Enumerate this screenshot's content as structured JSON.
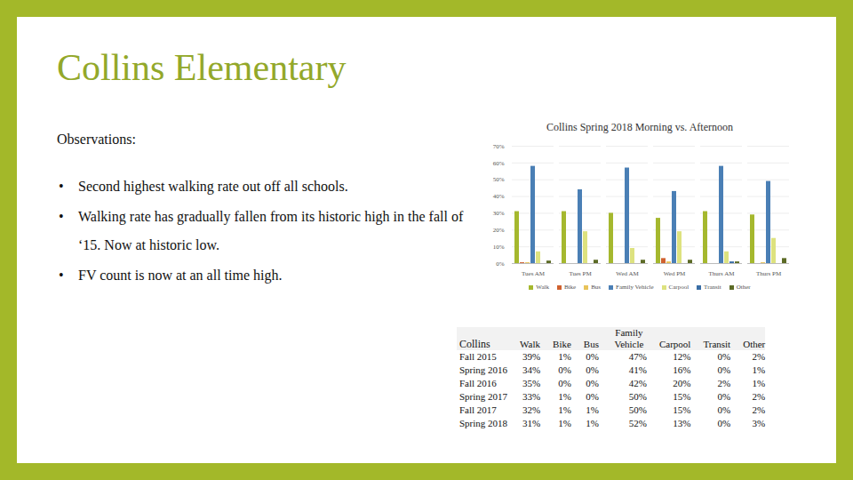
{
  "title": "Collins Elementary",
  "observations": {
    "heading": "Observations:",
    "bullets": [
      "Second highest walking rate out off all schools.",
      "Walking rate has gradually fallen from its historic high in the fall of ‘15. Now at historic low.",
      "FV count is now at an all time high."
    ]
  },
  "chart_data": {
    "type": "bar",
    "title": "Collins Spring 2018 Morning vs. Afternoon",
    "categories": [
      "Tues AM",
      "Tues PM",
      "Wed AM",
      "Wed PM",
      "Thurs AM",
      "Thurs PM"
    ],
    "series": [
      {
        "name": "Walk",
        "color": "#a5b82e",
        "values": [
          31,
          31,
          30,
          27,
          31,
          29
        ]
      },
      {
        "name": "Bike",
        "color": "#d0612f",
        "values": [
          0.5,
          0,
          0,
          3,
          0,
          0
        ]
      },
      {
        "name": "Bus",
        "color": "#e8c35a",
        "values": [
          0.5,
          0,
          0,
          1,
          0,
          0.5
        ]
      },
      {
        "name": "Family Vehicle",
        "color": "#4a7fb5",
        "values": [
          58,
          44,
          57,
          43,
          58,
          49
        ]
      },
      {
        "name": "Carpool",
        "color": "#dde27f",
        "values": [
          7,
          19,
          9,
          19,
          7,
          15
        ]
      },
      {
        "name": "Transit",
        "color": "#3a6ea5",
        "values": [
          0,
          0,
          0,
          0,
          1,
          0
        ]
      },
      {
        "name": "Other",
        "color": "#5c6b26",
        "values": [
          1.5,
          2,
          2,
          2,
          1,
          3
        ]
      }
    ],
    "ylim": [
      0,
      70
    ],
    "yticks": [
      {
        "value": 0,
        "label": "0%"
      },
      {
        "value": 10,
        "label": "10%"
      },
      {
        "value": 20,
        "label": "20%"
      },
      {
        "value": 30,
        "label": "30%"
      },
      {
        "value": 40,
        "label": "40%"
      },
      {
        "value": 50,
        "label": "50%"
      },
      {
        "value": 60,
        "label": "60%"
      },
      {
        "value": 70,
        "label": "70%"
      }
    ],
    "grid": true,
    "legend": "bottom"
  },
  "table": {
    "header": [
      "Collins",
      "Walk",
      "Bike",
      "Bus",
      "Family Vehicle",
      "Carpool",
      "Transit",
      "Other"
    ],
    "rows": [
      [
        "Fall 2015",
        "39%",
        "1%",
        "0%",
        "47%",
        "12%",
        "0%",
        "2%"
      ],
      [
        "Spring 2016",
        "34%",
        "0%",
        "0%",
        "41%",
        "16%",
        "0%",
        "1%"
      ],
      [
        "Fall 2016",
        "35%",
        "0%",
        "0%",
        "42%",
        "20%",
        "2%",
        "1%"
      ],
      [
        "Spring 2017",
        "33%",
        "1%",
        "0%",
        "50%",
        "15%",
        "0%",
        "2%"
      ],
      [
        "Fall 2017",
        "32%",
        "1%",
        "1%",
        "50%",
        "15%",
        "0%",
        "2%"
      ],
      [
        "Spring 2018",
        "31%",
        "1%",
        "1%",
        "52%",
        "13%",
        "0%",
        "3%"
      ]
    ]
  }
}
